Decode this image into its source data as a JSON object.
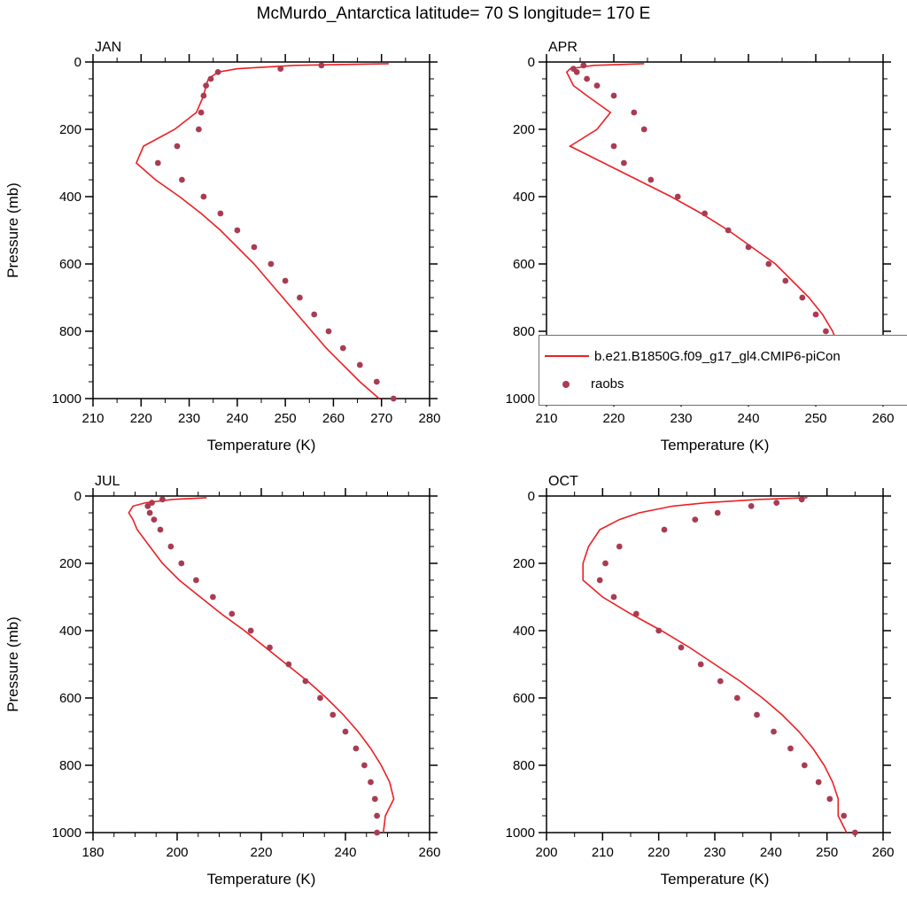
{
  "title": "McMurdo_Antarctica  latitude= 70 S longitude= 170 E",
  "colors": {
    "model_line": "#ed1f24",
    "raobs_dot": "#a93b52",
    "axis": "#000000",
    "legend_border": "#6f6f6f"
  },
  "legend": {
    "line_label": "b.e21.B1850G.f09_g17_gl4.CMIP6-piCon",
    "marker_label": "raobs"
  },
  "chart_data": [
    {
      "type": "line",
      "month_label": "JAN",
      "xlabel": "Temperature (K)",
      "ylabel": "Pressure (mb)",
      "show_ylabel": true,
      "xlim": [
        210,
        280
      ],
      "xticks": [
        210,
        220,
        230,
        240,
        250,
        260,
        270,
        280
      ],
      "xminor_step": 5,
      "ylim": [
        0,
        1000
      ],
      "yticks": [
        0,
        200,
        400,
        600,
        800,
        1000
      ],
      "yminor_step": 50,
      "y_inverted": true,
      "series": [
        {
          "name": "model",
          "style": "line",
          "pressure": [
            5,
            10,
            20,
            30,
            50,
            70,
            100,
            150,
            200,
            250,
            300,
            350,
            400,
            450,
            500,
            550,
            600,
            650,
            700,
            750,
            800,
            850,
            900,
            950,
            1000
          ],
          "temperature": [
            271.5,
            252,
            240,
            236,
            234,
            233.5,
            233,
            231.5,
            227,
            220.5,
            219,
            223,
            228,
            232.5,
            236.5,
            240,
            243.5,
            246.5,
            249.5,
            252.5,
            255.5,
            258.5,
            262,
            265.5,
            269.5
          ]
        },
        {
          "name": "raobs",
          "style": "scatter",
          "pressure": [
            10,
            20,
            30,
            50,
            70,
            100,
            150,
            200,
            250,
            300,
            350,
            400,
            450,
            500,
            550,
            600,
            650,
            700,
            750,
            800,
            850,
            900,
            950,
            1000
          ],
          "temperature": [
            257.5,
            249,
            236,
            234.5,
            233.5,
            233,
            232.5,
            232,
            227.5,
            223.5,
            228.5,
            233,
            236.5,
            240,
            243.5,
            247,
            250,
            253,
            256,
            259,
            262,
            265.5,
            269,
            272.5
          ]
        }
      ]
    },
    {
      "type": "line",
      "month_label": "APR",
      "xlabel": "Temperature (K)",
      "ylabel": "Pressure (mb)",
      "show_ylabel": false,
      "xlim": [
        210,
        260
      ],
      "xticks": [
        210,
        220,
        230,
        240,
        250,
        260
      ],
      "xminor_step": 5,
      "ylim": [
        0,
        1000
      ],
      "yticks": [
        0,
        200,
        400,
        600,
        800,
        1000
      ],
      "yminor_step": 50,
      "y_inverted": true,
      "series": [
        {
          "name": "model",
          "style": "line",
          "pressure": [
            5,
            10,
            20,
            30,
            50,
            70,
            100,
            150,
            200,
            250,
            300,
            350,
            400,
            450,
            500,
            550,
            600,
            650,
            700,
            750,
            800,
            850,
            900,
            950,
            1000
          ],
          "temperature": [
            224.5,
            217,
            213.5,
            213,
            213.5,
            214,
            216,
            219.5,
            217.5,
            213.5,
            218.5,
            223.5,
            228.5,
            233,
            237,
            240.5,
            244,
            246.5,
            249,
            251,
            252.5,
            253.5,
            253.8,
            253,
            253.2
          ]
        },
        {
          "name": "raobs",
          "style": "scatter",
          "pressure": [
            10,
            20,
            30,
            50,
            70,
            100,
            150,
            200,
            250,
            300,
            350,
            400,
            450,
            500,
            550,
            600,
            650,
            700,
            750,
            800,
            850,
            900,
            950,
            1000
          ],
          "temperature": [
            215.5,
            214,
            214.5,
            216,
            217.5,
            220,
            223,
            224.5,
            220,
            221.5,
            225.5,
            229.5,
            233.5,
            237,
            240,
            243,
            245.5,
            248,
            250,
            251.5,
            253,
            254,
            255,
            256
          ]
        }
      ]
    },
    {
      "type": "line",
      "month_label": "JUL",
      "xlabel": "Temperature (K)",
      "ylabel": "Pressure (mb)",
      "show_ylabel": true,
      "xlim": [
        180,
        260
      ],
      "xticks": [
        180,
        200,
        220,
        240,
        260
      ],
      "xminor_step": 5,
      "ylim": [
        0,
        1000
      ],
      "yticks": [
        0,
        200,
        400,
        600,
        800,
        1000
      ],
      "yminor_step": 50,
      "y_inverted": true,
      "series": [
        {
          "name": "model",
          "style": "line",
          "pressure": [
            5,
            10,
            20,
            30,
            50,
            70,
            100,
            150,
            200,
            250,
            300,
            350,
            400,
            450,
            500,
            550,
            600,
            650,
            700,
            750,
            800,
            850,
            900,
            950,
            1000
          ],
          "temperature": [
            207,
            199,
            192.5,
            189.5,
            188.5,
            189.5,
            190.5,
            193.5,
            196.5,
            200.5,
            205.5,
            210.5,
            216,
            221,
            226,
            231,
            235.5,
            239.5,
            243,
            246,
            248.5,
            250.5,
            251.5,
            249.5,
            249
          ]
        },
        {
          "name": "raobs",
          "style": "scatter",
          "pressure": [
            10,
            20,
            30,
            50,
            70,
            100,
            150,
            200,
            250,
            300,
            350,
            400,
            450,
            500,
            550,
            600,
            650,
            700,
            750,
            800,
            850,
            900,
            950,
            1000
          ],
          "temperature": [
            196.5,
            194,
            193,
            193.5,
            194.5,
            196,
            198.5,
            201,
            204.5,
            208.5,
            213,
            217.5,
            222,
            226.5,
            230.5,
            234,
            237,
            240,
            242.5,
            244.5,
            246,
            247,
            247.5,
            247.5
          ]
        }
      ]
    },
    {
      "type": "line",
      "month_label": "OCT",
      "xlabel": "Temperature (K)",
      "ylabel": "Pressure (mb)",
      "show_ylabel": false,
      "xlim": [
        200,
        260
      ],
      "xticks": [
        200,
        210,
        220,
        230,
        240,
        250,
        260
      ],
      "xminor_step": 5,
      "ylim": [
        0,
        1000
      ],
      "yticks": [
        0,
        200,
        400,
        600,
        800,
        1000
      ],
      "yminor_step": 50,
      "y_inverted": true,
      "series": [
        {
          "name": "model",
          "style": "line",
          "pressure": [
            5,
            10,
            20,
            30,
            50,
            70,
            100,
            150,
            200,
            250,
            300,
            350,
            400,
            450,
            500,
            550,
            600,
            650,
            700,
            750,
            800,
            850,
            900,
            950,
            1000
          ],
          "temperature": [
            246.5,
            238,
            228.5,
            222.5,
            216.5,
            213,
            209.5,
            207.5,
            206.5,
            206.5,
            210,
            215,
            220.5,
            225.5,
            230,
            234.5,
            238.5,
            242,
            245,
            247.5,
            249.5,
            251,
            252,
            252,
            253.5
          ]
        },
        {
          "name": "raobs",
          "style": "scatter",
          "pressure": [
            10,
            20,
            30,
            50,
            70,
            100,
            150,
            200,
            250,
            300,
            350,
            400,
            450,
            500,
            550,
            600,
            650,
            700,
            750,
            800,
            850,
            900,
            950,
            1000
          ],
          "temperature": [
            245.5,
            241,
            236.5,
            230.5,
            226.5,
            221,
            213,
            210.5,
            209.5,
            212,
            216,
            220,
            224,
            227.5,
            231,
            234,
            237.5,
            240.5,
            243.5,
            246,
            248.5,
            250.5,
            253,
            255
          ]
        }
      ]
    }
  ]
}
